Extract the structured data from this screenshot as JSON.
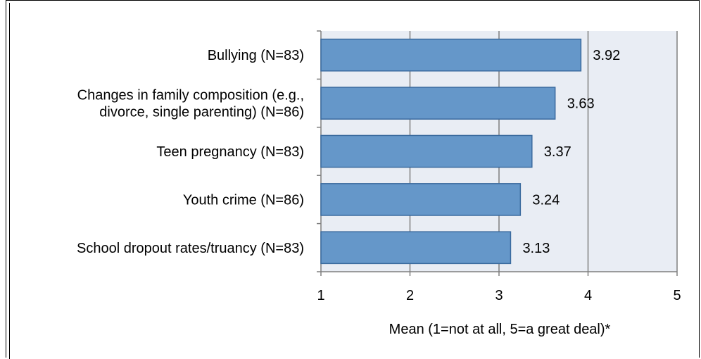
{
  "colors": {
    "plot_background": "#e9edf4",
    "bar_fill": "#6597c9",
    "bar_stroke": "#3a6a9e",
    "gridline": "#7f7f7f",
    "axis": "#7f7f7f"
  },
  "chart_data": {
    "type": "bar",
    "orientation": "horizontal",
    "categories": [
      [
        "Bullying (N=83)"
      ],
      [
        "Changes in family composition (e.g.,",
        "divorce, single parenting) (N=86)"
      ],
      [
        "Teen pregnancy (N=83)"
      ],
      [
        "Youth crime (N=86)"
      ],
      [
        "School dropout rates/truancy (N=83)"
      ]
    ],
    "values": [
      3.92,
      3.63,
      3.37,
      3.24,
      3.13
    ],
    "data_labels": [
      "3.92",
      "3.63",
      "3.37",
      "3.24",
      "3.13"
    ],
    "xlim": [
      1,
      5
    ],
    "x_ticks": [
      "1",
      "2",
      "3",
      "4",
      "5"
    ],
    "xlabel": "Mean (1=not at all, 5=a great deal)*",
    "grid": "vertical",
    "legend": "none"
  }
}
